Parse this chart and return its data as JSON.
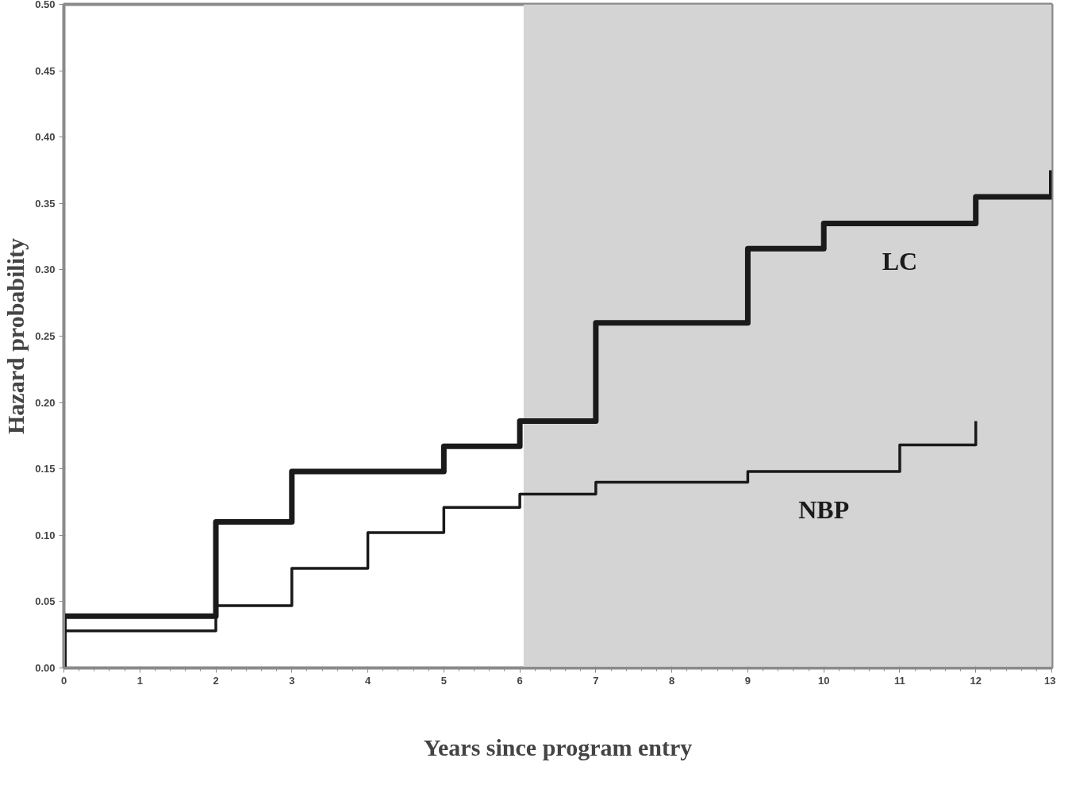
{
  "chart_data": {
    "type": "step",
    "xlabel": "Years since program entry",
    "ylabel": "Hazard probability",
    "series": [
      {
        "name": "LC",
        "color": "#1a1a1a",
        "x": [
          0,
          0,
          2,
          3,
          5,
          6,
          7,
          9,
          10,
          12,
          13,
          13
        ],
        "values": [
          0,
          0.039,
          0.11,
          0.148,
          0.167,
          0.186,
          0.26,
          0.316,
          0.335,
          0.355,
          0.355,
          0.375
        ]
      },
      {
        "name": "NBP",
        "color": "#1a1a1a",
        "x": [
          0,
          2,
          3,
          4,
          5,
          6,
          7,
          9,
          11,
          12,
          12
        ],
        "values": [
          0.028,
          0.047,
          0.075,
          0.102,
          0.121,
          0.131,
          0.14,
          0.148,
          0.168,
          0.168,
          0.186
        ]
      }
    ],
    "xlim": [
      0,
      13
    ],
    "xticks": [
      0,
      1,
      2,
      3,
      4,
      5,
      6,
      7,
      8,
      9,
      10,
      11,
      12,
      13
    ],
    "ylim": [
      0,
      0.5
    ],
    "yticks": [
      {
        "value": 0,
        "label": "0.00"
      },
      {
        "value": 0.05,
        "label": "0.05"
      },
      {
        "value": 0.1,
        "label": "0.10"
      },
      {
        "value": 0.15,
        "label": "0.15"
      },
      {
        "value": 0.2,
        "label": "0.20"
      },
      {
        "value": 0.25,
        "label": "0.25"
      },
      {
        "value": 0.3,
        "label": "0.30"
      },
      {
        "value": 0.35,
        "label": "0.35"
      },
      {
        "value": 0.4,
        "label": "0.40"
      },
      {
        "value": 0.45,
        "label": "0.45"
      },
      {
        "value": 0.5,
        "label": "0.50"
      }
    ],
    "bands": [
      {
        "axis": "x",
        "from": 6.05,
        "to": 13,
        "color": "#d4d4d4"
      }
    ],
    "grid": false,
    "marker": "none",
    "line_style": "solid"
  }
}
